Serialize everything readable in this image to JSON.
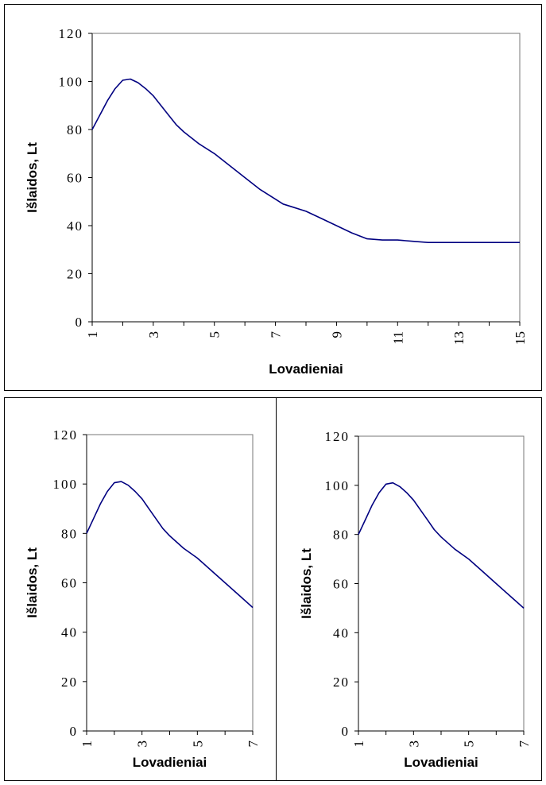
{
  "colors": {
    "line": "#000080",
    "frame": "#000000",
    "plot_border": "#777777"
  },
  "chart_data": [
    {
      "type": "line",
      "title": "",
      "xlabel": "Lovadieniai",
      "ylabel": "Išlaidos, Lt",
      "xlim": [
        1,
        15
      ],
      "ylim": [
        0,
        120
      ],
      "x_tick_labels": [
        "1",
        "3",
        "5",
        "7",
        "9",
        "11",
        "13",
        "15"
      ],
      "y_tick_labels": [
        "0",
        "20",
        "40",
        "60",
        "80",
        "100",
        "120"
      ],
      "grid": false,
      "legend": "none",
      "series": [
        {
          "x": [
            1,
            1.25,
            1.5,
            1.75,
            2,
            2.25,
            2.5,
            2.75,
            3,
            3.25,
            3.5,
            3.75,
            4,
            4.5,
            5,
            5.5,
            6,
            6.5,
            7,
            7.25,
            7.5,
            8,
            8.5,
            9,
            9.5,
            10,
            10.5,
            11,
            11.5,
            12,
            13,
            14,
            15
          ],
          "y": [
            80,
            86,
            92,
            97,
            100.5,
            101,
            99.5,
            97,
            94,
            90,
            86,
            82,
            79,
            74,
            70,
            65,
            60,
            55,
            51,
            49,
            48,
            46,
            43,
            40,
            37,
            34.5,
            34,
            34,
            33.5,
            33,
            33,
            33,
            33
          ]
        }
      ]
    },
    {
      "type": "line",
      "title": "",
      "xlabel": "Lovadieniai",
      "ylabel": "Išlaidos, Lt",
      "xlim": [
        1,
        7
      ],
      "ylim": [
        0,
        120
      ],
      "x_tick_labels": [
        "1",
        "3",
        "5",
        "7"
      ],
      "y_tick_labels": [
        "0",
        "20",
        "40",
        "60",
        "80",
        "100",
        "120"
      ],
      "grid": false,
      "legend": "none",
      "series": [
        {
          "x": [
            1,
            1.25,
            1.5,
            1.75,
            2,
            2.25,
            2.5,
            2.75,
            3,
            3.25,
            3.5,
            3.75,
            4,
            4.5,
            5,
            5.5,
            6,
            6.5,
            7
          ],
          "y": [
            80,
            86,
            92,
            97,
            100.5,
            101,
            99.5,
            97,
            94,
            90,
            86,
            82,
            79,
            74,
            70,
            65,
            60,
            55,
            50
          ]
        }
      ]
    },
    {
      "type": "line",
      "title": "",
      "xlabel": "Lovadieniai",
      "ylabel": "Išlaidos, Lt",
      "xlim": [
        1,
        7
      ],
      "ylim": [
        0,
        120
      ],
      "x_tick_labels": [
        "1",
        "3",
        "5",
        "7"
      ],
      "y_tick_labels": [
        "0",
        "20",
        "40",
        "60",
        "80",
        "100",
        "120"
      ],
      "grid": false,
      "legend": "none",
      "series": [
        {
          "x": [
            1,
            1.25,
            1.5,
            1.75,
            2,
            2.25,
            2.5,
            2.75,
            3,
            3.25,
            3.5,
            3.75,
            4,
            4.5,
            5,
            5.5,
            6,
            6.5,
            7
          ],
          "y": [
            80,
            86,
            92,
            97,
            100.5,
            101,
            99.5,
            97,
            94,
            90,
            86,
            82,
            79,
            74,
            70,
            65,
            60,
            55,
            50
          ]
        }
      ]
    }
  ]
}
